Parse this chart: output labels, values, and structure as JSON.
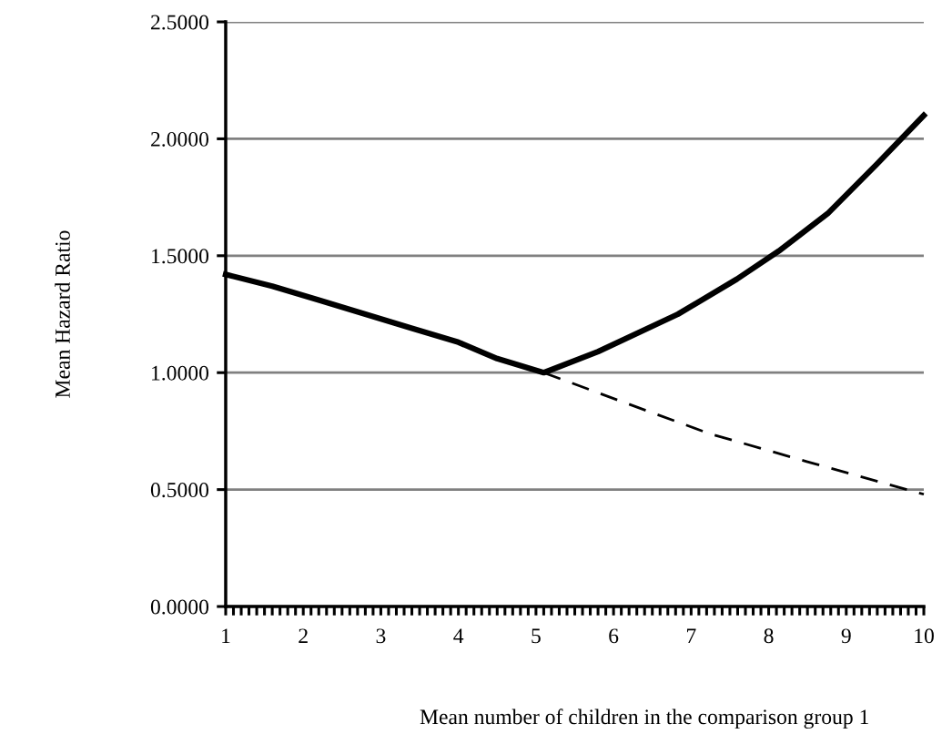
{
  "chart_data": {
    "type": "line",
    "xlabel": "Mean number of children in the comparison group 1",
    "ylabel": "Mean Hazard Ratio",
    "series": [
      {
        "color": "#000000",
        "line_style": "solid",
        "x": [
          1.0,
          1.6,
          2.2,
          2.8,
          3.4,
          4.0,
          4.5,
          5.1,
          5.8,
          6.83,
          7.59,
          8.13,
          8.76,
          9.39,
          10.0
        ],
        "values": [
          1.42,
          1.37,
          1.31,
          1.25,
          1.19,
          1.13,
          1.06,
          1.0,
          1.09,
          1.25,
          1.4,
          1.52,
          1.68,
          1.89,
          2.1
        ]
      },
      {
        "color": "#000000",
        "line_style": "dashed",
        "x": [
          5.1,
          6.24,
          7.23,
          8.49,
          10.0
        ],
        "values": [
          1.0,
          0.86,
          0.74,
          0.62,
          0.48
        ]
      }
    ],
    "xlim": [
      1,
      10
    ],
    "ylim": [
      0,
      2.5
    ],
    "xticks": [
      1,
      2,
      3,
      4,
      5,
      6,
      7,
      8,
      9,
      10
    ],
    "yticks": [
      {
        "value": 0,
        "label": "0.0000"
      },
      {
        "value": 0.5,
        "label": "0.5000"
      },
      {
        "value": 1,
        "label": "1.0000"
      },
      {
        "value": 1.5,
        "label": "1.5000"
      },
      {
        "value": 2,
        "label": "2.0000"
      },
      {
        "value": 2.5,
        "label": "2.5000"
      }
    ],
    "grid": "y",
    "legend": false,
    "marker": "none"
  }
}
